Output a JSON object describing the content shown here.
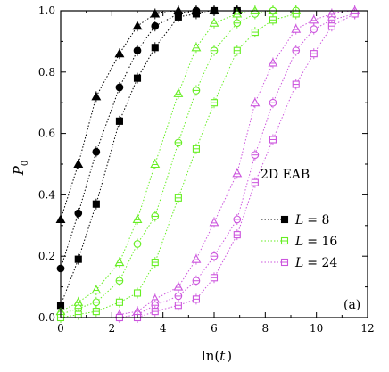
{
  "chart_data": {
    "type": "scatter",
    "xlabel": {
      "main": "ln(",
      "var": "t",
      "close": ")"
    },
    "ylabel": {
      "main": "P",
      "sub": "0"
    },
    "xlim": [
      0,
      12
    ],
    "ylim": [
      0,
      1.0
    ],
    "xticks": [
      0,
      2,
      4,
      6,
      8,
      10,
      12
    ],
    "yticks": [
      0.0,
      0.2,
      0.4,
      0.6,
      0.8,
      1.0
    ],
    "xtick_labels": [
      "0",
      "2",
      "4",
      "6",
      "8",
      "10",
      "12"
    ],
    "ytick_labels": [
      "0.0",
      "0.2",
      "0.4",
      "0.6",
      "0.8",
      "1.0"
    ],
    "annotations": {
      "system": "2D EAB",
      "panel": "(a)"
    },
    "legend": {
      "placement": "right",
      "entries": [
        {
          "var": "L",
          "value": "= 8",
          "color": "#000000"
        },
        {
          "var": "L",
          "value": "= 16",
          "color": "#66ee22"
        },
        {
          "var": "L",
          "value": "= 24",
          "color": "#cc55dd"
        }
      ]
    },
    "groups": [
      {
        "color": "#000000",
        "series": [
          {
            "marker": "triangle",
            "x": [
              0,
              0.69,
              1.39,
              2.3,
              3.0,
              3.69,
              4.6,
              5.3,
              6.0,
              6.9
            ],
            "y": [
              0.32,
              0.5,
              0.72,
              0.86,
              0.95,
              0.99,
              1.0,
              1.0,
              1.0,
              1.0
            ]
          },
          {
            "marker": "circle",
            "x": [
              0,
              0.69,
              1.39,
              2.3,
              3.0,
              3.69,
              4.6,
              5.3,
              6.0,
              6.9
            ],
            "y": [
              0.16,
              0.34,
              0.54,
              0.75,
              0.87,
              0.95,
              0.99,
              1.0,
              1.0,
              1.0
            ]
          },
          {
            "marker": "square",
            "x": [
              0,
              0.69,
              1.39,
              2.3,
              3.0,
              3.69,
              4.6,
              5.3,
              6.0,
              6.9
            ],
            "y": [
              0.04,
              0.19,
              0.37,
              0.64,
              0.78,
              0.88,
              0.98,
              0.99,
              1.0,
              1.0
            ]
          }
        ]
      },
      {
        "color": "#66ee22",
        "series": [
          {
            "marker": "triangle",
            "x": [
              0,
              0.69,
              1.39,
              2.3,
              3.0,
              3.69,
              4.6,
              5.3,
              6.0,
              6.9,
              7.6,
              8.3,
              9.2
            ],
            "y": [
              0.02,
              0.05,
              0.09,
              0.18,
              0.32,
              0.5,
              0.73,
              0.88,
              0.96,
              0.99,
              1.0,
              1.0,
              1.0
            ]
          },
          {
            "marker": "circle",
            "x": [
              0,
              0.69,
              1.39,
              2.3,
              3.0,
              3.69,
              4.6,
              5.3,
              6.0,
              6.9,
              7.6,
              8.3,
              9.2
            ],
            "y": [
              0.01,
              0.03,
              0.05,
              0.12,
              0.24,
              0.33,
              0.57,
              0.74,
              0.87,
              0.96,
              0.99,
              1.0,
              1.0
            ]
          },
          {
            "marker": "square",
            "x": [
              0,
              0.69,
              1.39,
              2.3,
              3.0,
              3.69,
              4.6,
              5.3,
              6.0,
              6.9,
              7.6,
              8.3,
              9.2
            ],
            "y": [
              0.0,
              0.01,
              0.02,
              0.05,
              0.08,
              0.18,
              0.39,
              0.55,
              0.7,
              0.87,
              0.93,
              0.97,
              0.99
            ]
          }
        ]
      },
      {
        "color": "#cc55dd",
        "series": [
          {
            "marker": "triangle",
            "x": [
              2.3,
              3.0,
              3.69,
              4.6,
              5.3,
              6.0,
              6.9,
              7.6,
              8.3,
              9.2,
              9.9,
              10.6,
              11.5
            ],
            "y": [
              0.01,
              0.02,
              0.06,
              0.1,
              0.19,
              0.31,
              0.47,
              0.7,
              0.83,
              0.94,
              0.97,
              0.99,
              1.0
            ]
          },
          {
            "marker": "circle",
            "x": [
              2.3,
              3.0,
              3.69,
              4.6,
              5.3,
              6.0,
              6.9,
              7.6,
              8.3,
              9.2,
              9.9,
              10.6,
              11.5
            ],
            "y": [
              0.0,
              0.01,
              0.04,
              0.07,
              0.12,
              0.2,
              0.32,
              0.53,
              0.7,
              0.87,
              0.94,
              0.97,
              0.99
            ]
          },
          {
            "marker": "square",
            "x": [
              2.3,
              3.0,
              3.69,
              4.6,
              5.3,
              6.0,
              6.9,
              7.6,
              8.3,
              9.2,
              9.9,
              10.6,
              11.5
            ],
            "y": [
              0.0,
              0.0,
              0.02,
              0.04,
              0.06,
              0.13,
              0.27,
              0.44,
              0.58,
              0.76,
              0.86,
              0.95,
              0.99
            ]
          }
        ]
      }
    ]
  }
}
